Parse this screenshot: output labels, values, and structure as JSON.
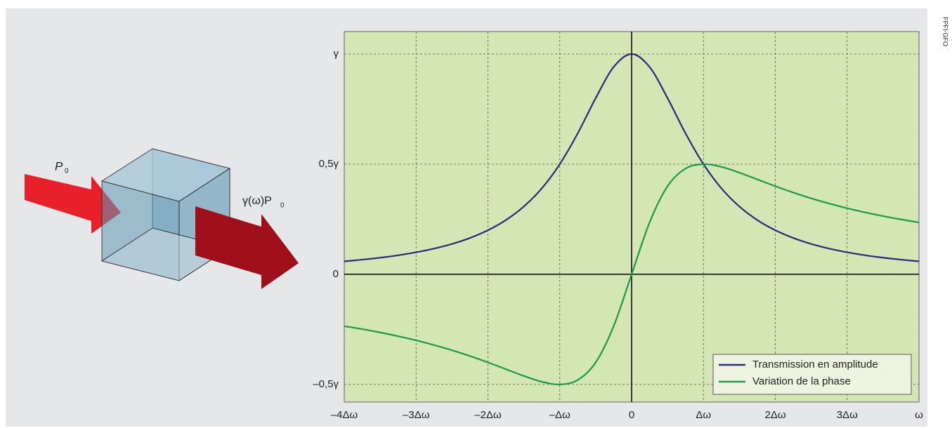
{
  "chart_data": {
    "type": "line",
    "x": [
      -4,
      -3.75,
      -3.5,
      -3.25,
      -3,
      -2.75,
      -2.5,
      -2.25,
      -2,
      -1.75,
      -1.5,
      -1.25,
      -1,
      -0.75,
      -0.5,
      -0.25,
      0,
      0.25,
      0.5,
      0.75,
      1,
      1.25,
      1.5,
      1.75,
      2,
      2.25,
      2.5,
      2.75,
      3,
      3.25,
      3.5,
      3.75,
      4
    ],
    "series": [
      {
        "name": "Transmission en amplitude",
        "color": "#2b2a7c",
        "values": [
          0.0588,
          0.0664,
          0.0755,
          0.0865,
          0.1,
          0.1168,
          0.1379,
          0.1649,
          0.2,
          0.2462,
          0.3077,
          0.3902,
          0.5,
          0.64,
          0.8,
          0.9412,
          1,
          0.9412,
          0.8,
          0.64,
          0.5,
          0.3902,
          0.3077,
          0.2462,
          0.2,
          0.1649,
          0.1379,
          0.1168,
          0.1,
          0.0865,
          0.0755,
          0.0664,
          0.0588
        ]
      },
      {
        "name": "Variation de la phase",
        "color": "#1a9a4a",
        "values": [
          -0.2353,
          -0.249,
          -0.2642,
          -0.2811,
          -0.3,
          -0.3212,
          -0.3448,
          -0.3711,
          -0.4,
          -0.4308,
          -0.4615,
          -0.4878,
          -0.5,
          -0.48,
          -0.4,
          -0.2353,
          0,
          0.2353,
          0.4,
          0.48,
          0.5,
          0.4878,
          0.4615,
          0.4308,
          0.4,
          0.3711,
          0.3448,
          0.3212,
          0.3,
          0.2811,
          0.2642,
          0.249,
          0.2353
        ]
      }
    ],
    "xlim": [
      -4,
      4
    ],
    "ylim": [
      -0.58,
      1.102
    ],
    "xticks": [
      {
        "value": -4,
        "label": "–4Δω"
      },
      {
        "value": -3,
        "label": "–3Δω"
      },
      {
        "value": -2,
        "label": "–2Δω"
      },
      {
        "value": -1,
        "label": "–Δω"
      },
      0,
      {
        "value": 1,
        "label": "Δω"
      },
      {
        "value": 2,
        "label": "2Δω"
      },
      {
        "value": 3,
        "label": "3Δω"
      },
      {
        "value": 4,
        "label": "ω"
      }
    ],
    "yticks": [
      {
        "value": -0.5,
        "label": "–0,5γ"
      },
      0,
      {
        "value": 0.5,
        "label": "0,5γ"
      },
      {
        "value": 1,
        "label": "γ"
      }
    ],
    "grid": true,
    "legend": "lower right"
  },
  "diagram": {
    "input_label": "P",
    "input_subscript": "0",
    "output_label": "γ(ω)P",
    "output_subscript": "0"
  },
  "credit": "FPFI-GFO"
}
